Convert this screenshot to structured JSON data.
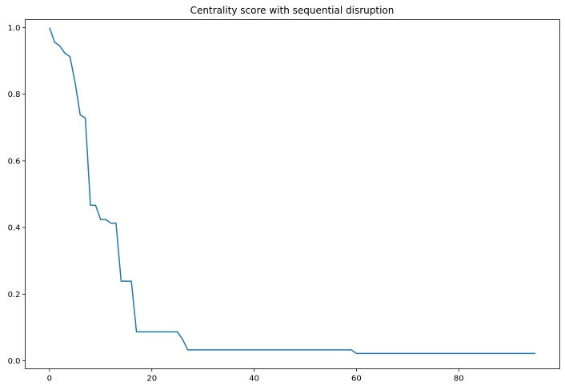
{
  "chart_data": {
    "type": "line",
    "title": "Centrality score with sequential disruption",
    "xlabel": "",
    "ylabel": "",
    "xlim": [
      -4.75,
      99.75
    ],
    "ylim": [
      -0.0239,
      1.0239
    ],
    "x_ticks": [
      0,
      20,
      40,
      60,
      80
    ],
    "y_ticks": [
      0.0,
      0.2,
      0.4,
      0.6,
      0.8,
      1.0
    ],
    "x_tick_labels": [
      "0",
      "20",
      "40",
      "60",
      "80"
    ],
    "y_tick_labels": [
      "0.0",
      "0.2",
      "0.4",
      "0.6",
      "0.8",
      "1.0"
    ],
    "grid": false,
    "series": [
      {
        "color": "#1f77b4",
        "x": [
          0,
          1,
          2,
          3,
          4,
          5,
          6,
          7,
          8,
          9,
          10,
          11,
          12,
          13,
          14,
          15,
          16,
          17,
          18,
          19,
          20,
          21,
          22,
          23,
          24,
          25,
          26,
          27,
          28,
          29,
          30,
          31,
          32,
          33,
          34,
          35,
          36,
          37,
          38,
          39,
          40,
          41,
          42,
          43,
          44,
          45,
          46,
          47,
          48,
          49,
          50,
          51,
          52,
          53,
          54,
          55,
          56,
          57,
          58,
          59,
          60,
          61,
          62,
          63,
          64,
          65,
          66,
          67,
          68,
          69,
          70,
          71,
          72,
          73,
          74,
          75,
          76,
          77,
          78,
          79,
          80,
          81,
          82,
          83,
          84,
          85,
          86,
          87,
          88,
          89,
          90,
          91,
          92,
          93,
          94,
          95
        ],
        "y": [
          1.0,
          0.956,
          0.945,
          0.923,
          0.913,
          0.835,
          0.738,
          0.729,
          0.467,
          0.467,
          0.424,
          0.424,
          0.413,
          0.413,
          0.239,
          0.239,
          0.239,
          0.087,
          0.087,
          0.087,
          0.087,
          0.087,
          0.087,
          0.087,
          0.087,
          0.087,
          0.065,
          0.033,
          0.033,
          0.033,
          0.033,
          0.033,
          0.033,
          0.033,
          0.033,
          0.033,
          0.033,
          0.033,
          0.033,
          0.033,
          0.033,
          0.033,
          0.033,
          0.033,
          0.033,
          0.033,
          0.033,
          0.033,
          0.033,
          0.033,
          0.033,
          0.033,
          0.033,
          0.033,
          0.033,
          0.033,
          0.033,
          0.033,
          0.033,
          0.033,
          0.022,
          0.022,
          0.022,
          0.022,
          0.022,
          0.022,
          0.022,
          0.022,
          0.022,
          0.022,
          0.022,
          0.022,
          0.022,
          0.022,
          0.022,
          0.022,
          0.022,
          0.022,
          0.022,
          0.022,
          0.022,
          0.022,
          0.022,
          0.022,
          0.022,
          0.022,
          0.022,
          0.022,
          0.022,
          0.022,
          0.022,
          0.022,
          0.022,
          0.022,
          0.022,
          0.022
        ]
      }
    ]
  }
}
